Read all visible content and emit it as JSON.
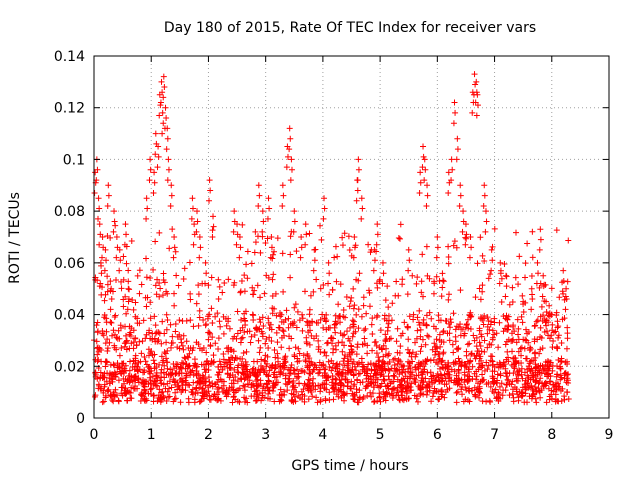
{
  "chart_data": {
    "type": "scatter",
    "title": "Day 180 of 2015, Rate Of TEC Index for receiver vars",
    "xlabel": "GPS time / hours",
    "ylabel": "ROTI / TECUs",
    "xlim": [
      0,
      9
    ],
    "ylim": [
      0,
      0.14
    ],
    "xticks": [
      0,
      1,
      2,
      3,
      4,
      5,
      6,
      7,
      8,
      9
    ],
    "xtick_labels": [
      "0",
      "1",
      "2",
      "3",
      "4",
      "5",
      "6",
      "7",
      "8",
      "9"
    ],
    "yticks": [
      0,
      0.02,
      0.04,
      0.06,
      0.08,
      0.1,
      0.12,
      0.14
    ],
    "ytick_labels": [
      "0",
      "0.02",
      "0.04",
      "0.06",
      "0.08",
      "0.1",
      "0.12",
      "0.14"
    ],
    "grid": true,
    "marker": "+",
    "color": "#ff0000",
    "data_x_range": [
      0,
      8.3
    ],
    "note": "dense scatter of several thousand points; series below are representative samples of the visible clusters",
    "series": [
      {
        "name": "ROTI",
        "x": [
          0.02,
          0.05,
          0.08,
          0.1,
          0.12,
          0.15,
          0.2,
          0.25,
          0.3,
          0.35,
          0.4,
          0.45,
          0.55,
          0.6,
          0.92,
          0.98,
          1.05,
          1.08,
          1.12,
          1.15,
          1.18,
          1.2,
          1.22,
          1.25,
          1.28,
          1.3,
          1.35,
          1.4,
          1.72,
          1.75,
          1.8,
          1.85,
          1.95,
          2.02,
          2.08,
          2.45,
          2.5,
          2.55,
          2.82,
          2.88,
          2.95,
          3.05,
          3.1,
          3.3,
          3.38,
          3.42,
          3.45,
          3.5,
          3.62,
          3.7,
          3.85,
          4.02,
          4.1,
          4.55,
          4.6,
          4.62,
          4.68,
          4.9,
          4.95,
          5.05,
          5.5,
          5.7,
          5.75,
          5.78,
          5.82,
          6.0,
          6.2,
          6.25,
          6.3,
          6.35,
          6.4,
          6.45,
          6.5,
          6.58,
          6.62,
          6.65,
          6.68,
          6.7,
          6.82,
          6.85,
          6.95,
          7.1,
          7.2,
          7.5,
          7.65,
          7.75,
          7.8,
          7.85,
          7.9,
          8.0,
          8.1,
          8.2,
          8.25
        ],
        "y": [
          0.095,
          0.1,
          0.085,
          0.075,
          0.06,
          0.07,
          0.065,
          0.09,
          0.05,
          0.08,
          0.07,
          0.065,
          0.075,
          0.05,
          0.085,
          0.1,
          0.095,
          0.11,
          0.105,
          0.125,
          0.13,
          0.118,
          0.132,
          0.12,
          0.112,
          0.1,
          0.09,
          0.07,
          0.085,
          0.075,
          0.08,
          0.07,
          0.06,
          0.092,
          0.078,
          0.08,
          0.075,
          0.07,
          0.072,
          0.09,
          0.08,
          0.085,
          0.07,
          0.09,
          0.105,
          0.112,
          0.1,
          0.08,
          0.07,
          0.075,
          0.065,
          0.085,
          0.06,
          0.07,
          0.092,
          0.1,
          0.085,
          0.065,
          0.075,
          0.06,
          0.065,
          0.095,
          0.105,
          0.1,
          0.09,
          0.07,
          0.095,
          0.1,
          0.122,
          0.108,
          0.09,
          0.08,
          0.075,
          0.07,
          0.126,
          0.133,
          0.13,
          0.125,
          0.09,
          0.08,
          0.065,
          0.06,
          0.055,
          0.045,
          0.05,
          0.06,
          0.073,
          0.055,
          0.045,
          0.04,
          0.035,
          0.057,
          0.05
        ]
      }
    ]
  }
}
